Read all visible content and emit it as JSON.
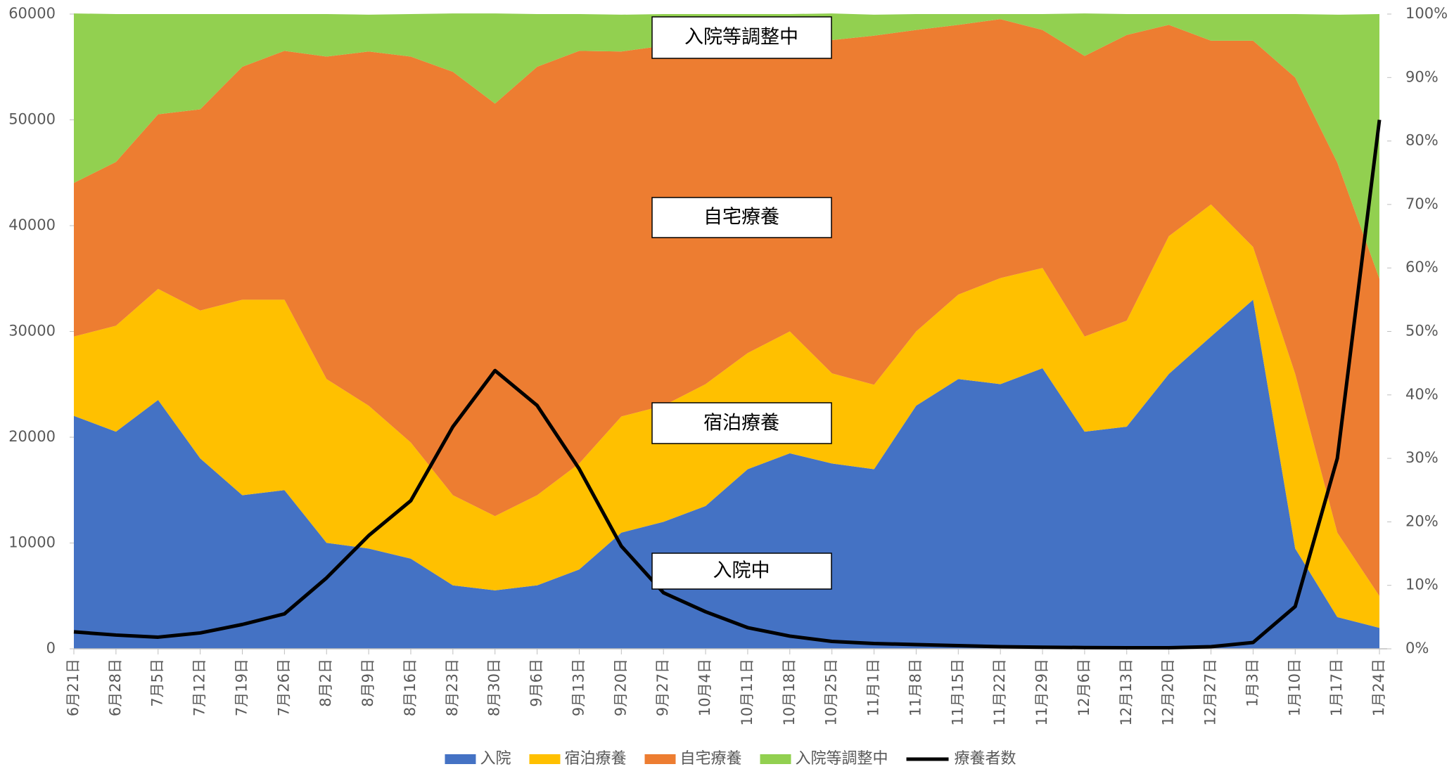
{
  "chart_data": {
    "type": "stacked-area-line",
    "categories": [
      "6月21日",
      "6月28日",
      "7月5日",
      "7月12日",
      "7月19日",
      "7月26日",
      "8月2日",
      "8月9日",
      "8月16日",
      "8月23日",
      "8月30日",
      "9月6日",
      "9月13日",
      "9月20日",
      "9月27日",
      "10月4日",
      "10月11日",
      "10月18日",
      "10月25日",
      "11月1日",
      "11月8日",
      "11月15日",
      "11月22日",
      "11月29日",
      "12月6日",
      "12月13日",
      "12月20日",
      "12月27日",
      "1月3日",
      "1月10日",
      "1月17日",
      "1月24日"
    ],
    "series": [
      {
        "name": "入院",
        "color": "#4472c4",
        "axis": "y2",
        "values": [
          36.7,
          34.2,
          39.2,
          30.0,
          24.2,
          25.0,
          16.7,
          15.8,
          14.2,
          10.0,
          9.2,
          10.0,
          12.5,
          18.3,
          20.0,
          22.5,
          28.3,
          30.8,
          29.2,
          28.3,
          38.3,
          42.5,
          41.7,
          44.2,
          34.2,
          35.0,
          43.3,
          49.2,
          55.0,
          15.8,
          5.0,
          3.3
        ]
      },
      {
        "name": "宿泊療養",
        "color": "#ffc000",
        "axis": "y2",
        "values": [
          12.5,
          16.7,
          17.5,
          23.3,
          30.8,
          30.0,
          25.8,
          22.5,
          18.3,
          14.2,
          11.7,
          14.2,
          16.7,
          18.3,
          18.3,
          19.2,
          18.3,
          19.2,
          14.2,
          13.3,
          11.7,
          13.3,
          16.7,
          15.8,
          15.0,
          16.7,
          21.7,
          20.8,
          8.3,
          27.5,
          13.3,
          5.0
        ]
      },
      {
        "name": "自宅療養",
        "color": "#ed7d31",
        "axis": "y2",
        "values": [
          24.2,
          25.8,
          27.5,
          31.7,
          36.7,
          39.2,
          50.8,
          55.8,
          60.8,
          66.7,
          65.0,
          67.5,
          65.0,
          57.5,
          56.7,
          53.3,
          49.2,
          45.8,
          52.5,
          55.0,
          47.5,
          42.5,
          40.8,
          37.5,
          44.2,
          45.0,
          33.3,
          25.8,
          32.5,
          46.7,
          58.3,
          50.0
        ]
      },
      {
        "name": "入院等調整中",
        "color": "#92d050",
        "axis": "y2",
        "values": [
          26.7,
          23.3,
          15.8,
          15.0,
          8.3,
          5.8,
          6.7,
          5.8,
          6.7,
          9.2,
          14.2,
          8.3,
          5.8,
          5.8,
          5.0,
          5.0,
          4.2,
          4.2,
          4.2,
          3.3,
          2.5,
          1.7,
          0.8,
          2.5,
          6.7,
          3.3,
          1.7,
          4.2,
          4.2,
          10.0,
          23.3,
          41.7
        ]
      },
      {
        "name": "療養者数",
        "color": "#000000",
        "type": "line",
        "values": [
          1600,
          1300,
          1100,
          1500,
          2300,
          3300,
          6700,
          10700,
          14000,
          21000,
          26300,
          23000,
          17000,
          9700,
          5300,
          3500,
          2000,
          1200,
          700,
          500,
          400,
          300,
          200,
          150,
          120,
          100,
          100,
          200,
          600,
          4000,
          18000,
          50000
        ]
      }
    ],
    "ylim": [
      0,
      60000
    ],
    "yticks": [
      0,
      10000,
      20000,
      30000,
      40000,
      50000,
      60000
    ],
    "y2lim": [
      0,
      100
    ],
    "y2ticks": [
      {
        "value": 0,
        "label": "0%"
      },
      {
        "value": 10,
        "label": "10%"
      },
      {
        "value": 20,
        "label": "20%"
      },
      {
        "value": 30,
        "label": "30%"
      },
      {
        "value": 40,
        "label": "40%"
      },
      {
        "value": 50,
        "label": "50%"
      },
      {
        "value": 60,
        "label": "60%"
      },
      {
        "value": 70,
        "label": "70%"
      },
      {
        "value": 80,
        "label": "80%"
      },
      {
        "value": 90,
        "label": "90%"
      },
      {
        "value": 100,
        "label": "100%"
      }
    ],
    "annotations": [
      "入院等調整中",
      "自宅療養",
      "宿泊療養",
      "入院中"
    ],
    "legend": "bottom"
  }
}
